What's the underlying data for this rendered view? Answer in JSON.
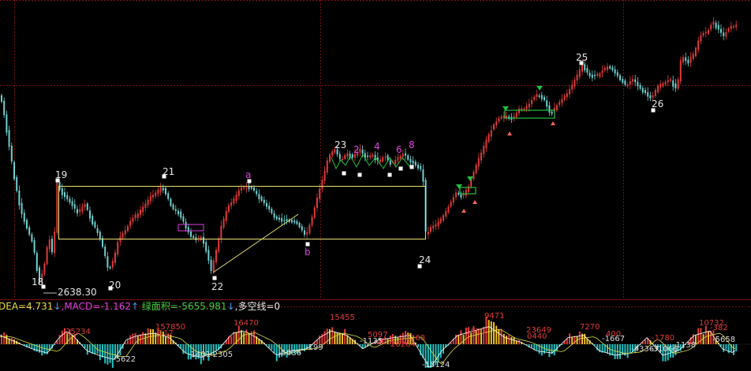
{
  "chart_data": [
    {
      "type": "candlestick",
      "title": "",
      "grid": true,
      "price_low_label": "2638.30",
      "wave_labels": [
        "18",
        "19",
        "20",
        "21",
        "22",
        "23",
        "24",
        "25",
        "26",
        "a",
        "b",
        "2",
        "4",
        "6",
        "8"
      ],
      "colors": {
        "background": "#000000",
        "up_candle": "#e03a3a",
        "down_candle": "#6fd0d0",
        "box": "#e8e070",
        "marker": "#ffffff",
        "green_marker": "#20c040",
        "grid": "#7a1010"
      }
    },
    {
      "type": "bar",
      "title": "MACD",
      "legend": {
        "dea": "DEA=4.731",
        "dea_arrow": "↓",
        "macd": ",MACD=-1.162",
        "macd_arrow": "↑",
        "green_area": " 绿面积=-5655.981",
        "green_area_arrow": "↓",
        "long_short": ",多空线=0"
      },
      "area_labels_top": [
        "25234",
        "157850",
        "-117",
        "16470",
        "15455",
        "5097",
        "26264",
        "-1268",
        "1850",
        "9471",
        "23649",
        "0440",
        "7270",
        "400",
        "-1780",
        "10732",
        "-382"
      ],
      "area_labels_bottom": [
        "-5622",
        "-1401",
        "-2305",
        "-5036",
        "-199",
        "-15124",
        "-1135",
        "-1667",
        "-43367",
        "-31066",
        "-1138",
        "-5658"
      ],
      "colors": {
        "positive": "#e03a3a",
        "positive_alt": "#f0c020",
        "negative": "#20c0c0",
        "dif_line": "#ffffff",
        "dea_line": "#e0e040",
        "legend_dea": "#e0e040",
        "legend_macd": "#e040e0",
        "legend_green": "#40d040",
        "legend_white": "#e6e6e6",
        "legend_arrow": "#40a0ff"
      }
    }
  ]
}
